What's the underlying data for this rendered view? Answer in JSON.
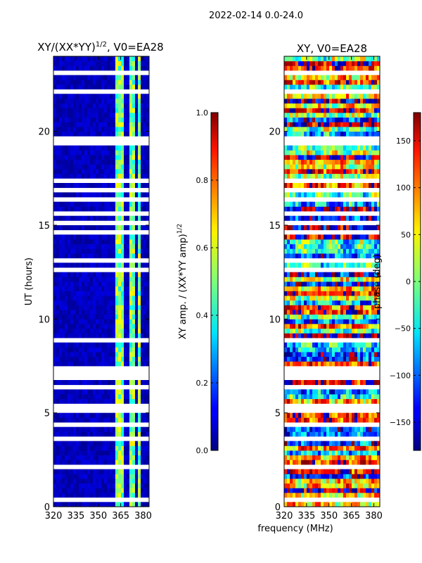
{
  "figure": {
    "suptitle": "2022-02-14 0.0-24.0",
    "xlabel_shared": "frequency (MHz)"
  },
  "chart_data": [
    {
      "type": "heatmap",
      "title": "XY/(XX*YY)",
      "title_exp": "1/2",
      "title_suffix": ", V0=EA28",
      "xlabel": "frequency (MHz)",
      "ylabel": "UT (hours)",
      "xlim": [
        320,
        384
      ],
      "ylim": [
        0,
        24
      ],
      "xticks": [
        320,
        335,
        350,
        365,
        380
      ],
      "yticks": [
        0,
        5,
        10,
        15,
        20
      ],
      "colorbar": {
        "label": "XY amp. / (XX*YY amp)",
        "label_exp": "1/2",
        "min": 0.0,
        "max": 1.0,
        "ticks": [
          "0.0",
          "0.2",
          "0.4",
          "0.6",
          "0.8",
          "1.0"
        ],
        "tick_values": [
          0.0,
          0.2,
          0.4,
          0.6,
          0.8,
          1.0
        ],
        "colormap": "jet"
      },
      "rfi_channels_mhz": [
        [
          361,
          363
        ],
        [
          364,
          367
        ],
        [
          370,
          372
        ],
        [
          373,
          375
        ],
        [
          377,
          379
        ]
      ],
      "flagged_ut_hours": [
        [
          0.05,
          0.1
        ],
        [
          0.35,
          0.45
        ],
        [
          0.75,
          0.8
        ],
        [
          1.0,
          1.1
        ],
        [
          1.4,
          1.45
        ],
        [
          1.7,
          1.8
        ],
        [
          2.1,
          2.2
        ],
        [
          2.45,
          2.6
        ],
        [
          3.5,
          3.7
        ],
        [
          3.95,
          4.05
        ],
        [
          4.3,
          4.4
        ],
        [
          4.65,
          4.75
        ],
        [
          4.95,
          5.5
        ],
        [
          5.65,
          5.75
        ],
        [
          6.25,
          6.4
        ],
        [
          6.85,
          7.45
        ],
        [
          8.45,
          8.55
        ],
        [
          8.85,
          8.95
        ],
        [
          9.25,
          9.3
        ],
        [
          9.55,
          9.6
        ],
        [
          9.9,
          10.0
        ],
        [
          10.3,
          10.35
        ],
        [
          10.65,
          10.75
        ],
        [
          11.05,
          11.1
        ],
        [
          11.5,
          11.6
        ],
        [
          12.0,
          12.1
        ],
        [
          12.55,
          12.65
        ],
        [
          12.95,
          13.25
        ],
        [
          13.45,
          13.55
        ],
        [
          13.7,
          13.8
        ],
        [
          13.95,
          14.1
        ],
        [
          14.3,
          14.35
        ],
        [
          14.55,
          14.65
        ],
        [
          15.0,
          15.3
        ],
        [
          15.6,
          15.7
        ],
        [
          16.0,
          16.1
        ],
        [
          16.35,
          16.45
        ],
        [
          16.8,
          17.05
        ],
        [
          17.3,
          17.45
        ],
        [
          18.95,
          19.05
        ],
        [
          19.3,
          19.4
        ],
        [
          19.6,
          19.7
        ],
        [
          19.9,
          20.0
        ],
        [
          21.5,
          21.6
        ],
        [
          22.1,
          22.2
        ],
        [
          22.65,
          22.75
        ],
        [
          23.1,
          23.2
        ],
        [
          23.45,
          23.55
        ]
      ]
    },
    {
      "type": "heatmap",
      "title": "XY, V0=EA28",
      "xlabel": "frequency (MHz)",
      "ylabel": "",
      "xlim": [
        320,
        384
      ],
      "ylim": [
        0,
        24
      ],
      "xticks": [
        320,
        335,
        350,
        365,
        380
      ],
      "yticks": [
        0,
        5,
        10,
        15,
        20
      ],
      "colorbar": {
        "label": "phase (deg)",
        "min": -180,
        "max": 180,
        "ticks": [
          "−150",
          "−100",
          "−50",
          "0",
          "50",
          "100",
          "150"
        ],
        "tick_values": [
          -150,
          -100,
          -50,
          0,
          50,
          100,
          150
        ],
        "colormap": "jet"
      }
    }
  ]
}
